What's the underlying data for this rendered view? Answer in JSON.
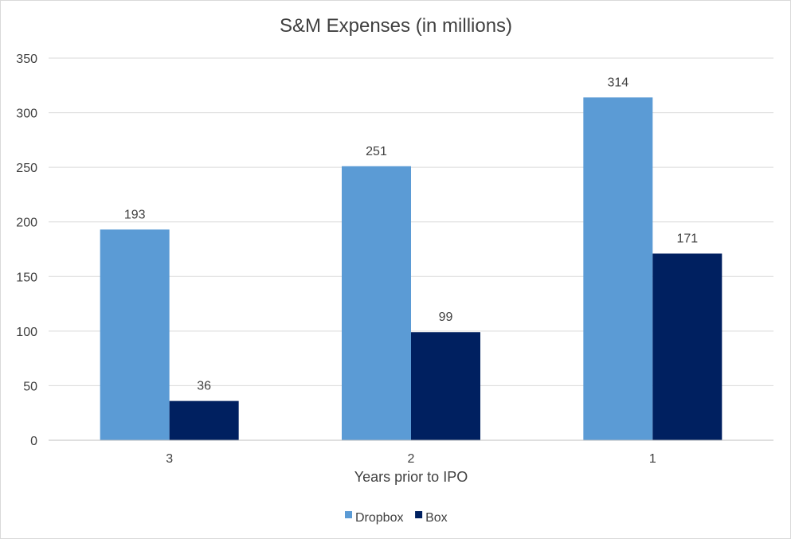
{
  "chart_data": {
    "type": "bar",
    "title": "S&M Expenses (in millions)",
    "xlabel": "Years prior to IPO",
    "ylabel": "",
    "categories": [
      "3",
      "2",
      "1"
    ],
    "ylim": [
      0,
      350
    ],
    "y_ticks": [
      "0",
      "50",
      "100",
      "150",
      "200",
      "250",
      "300",
      "350"
    ],
    "grid": true,
    "legend_position": "bottom",
    "series": [
      {
        "name": "Dropbox",
        "values": [
          193,
          251,
          314
        ],
        "color": "#5b9bd5"
      },
      {
        "name": "Box",
        "values": [
          36,
          99,
          171
        ],
        "color": "#002060"
      }
    ]
  }
}
